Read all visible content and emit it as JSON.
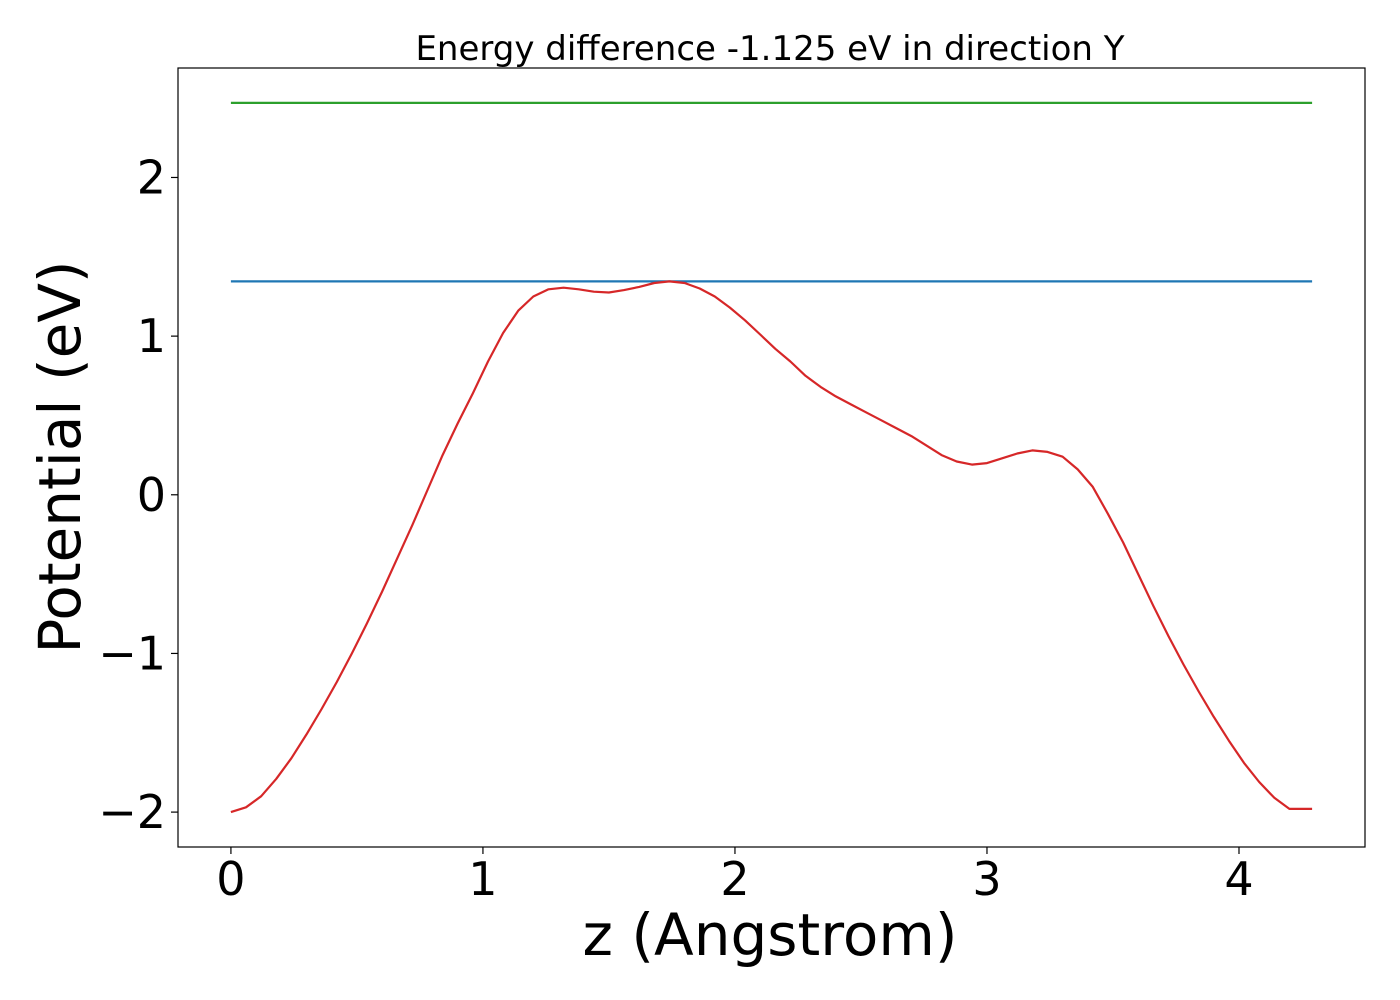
{
  "chart_data": {
    "type": "line",
    "title": "Energy difference -1.125 eV in direction Y",
    "xlabel": "z (Angstrom)",
    "ylabel": "Potential (eV)",
    "xlim": [
      -0.21,
      4.5
    ],
    "ylim": [
      -2.22,
      2.69
    ],
    "x_ticks": [
      0,
      1,
      2,
      3,
      4
    ],
    "x_tick_labels": [
      "0",
      "1",
      "2",
      "3",
      "4"
    ],
    "y_ticks": [
      -2,
      -1,
      0,
      1,
      2
    ],
    "y_tick_labels": [
      "−2",
      "−1",
      "0",
      "1",
      "2"
    ],
    "grid": false,
    "series": [
      {
        "color": "#2ca02c",
        "x": [
          0,
          4.29
        ],
        "y": [
          2.47,
          2.47
        ]
      },
      {
        "color": "#1f77b4",
        "x": [
          0,
          4.29
        ],
        "y": [
          1.345,
          1.345
        ]
      },
      {
        "color": "#d62728",
        "x": [
          0,
          0.06,
          0.12,
          0.18,
          0.24,
          0.3,
          0.36,
          0.42,
          0.48,
          0.54,
          0.6,
          0.66,
          0.72,
          0.78,
          0.84,
          0.9,
          0.96,
          1.02,
          1.08,
          1.14,
          1.2,
          1.26,
          1.32,
          1.38,
          1.44,
          1.5,
          1.56,
          1.62,
          1.68,
          1.74,
          1.8,
          1.86,
          1.92,
          1.98,
          2.04,
          2.1,
          2.16,
          2.22,
          2.28,
          2.34,
          2.4,
          2.46,
          2.52,
          2.58,
          2.64,
          2.7,
          2.76,
          2.82,
          2.88,
          2.94,
          3.0,
          3.06,
          3.12,
          3.18,
          3.24,
          3.3,
          3.36,
          3.42,
          3.48,
          3.54,
          3.6,
          3.66,
          3.72,
          3.78,
          3.84,
          3.9,
          3.96,
          4.02,
          4.08,
          4.14,
          4.2,
          4.29
        ],
        "y": [
          -2.0,
          -1.97,
          -1.9,
          -1.79,
          -1.66,
          -1.51,
          -1.35,
          -1.18,
          -1.0,
          -0.81,
          -0.61,
          -0.4,
          -0.19,
          0.03,
          0.25,
          0.45,
          0.64,
          0.84,
          1.02,
          1.16,
          1.25,
          1.295,
          1.305,
          1.295,
          1.28,
          1.275,
          1.29,
          1.31,
          1.335,
          1.345,
          1.335,
          1.3,
          1.25,
          1.18,
          1.1,
          1.01,
          0.92,
          0.84,
          0.75,
          0.68,
          0.62,
          0.57,
          0.52,
          0.47,
          0.42,
          0.37,
          0.31,
          0.25,
          0.21,
          0.19,
          0.2,
          0.23,
          0.26,
          0.28,
          0.27,
          0.24,
          0.16,
          0.05,
          -0.12,
          -0.3,
          -0.5,
          -0.7,
          -0.89,
          -1.07,
          -1.24,
          -1.4,
          -1.55,
          -1.69,
          -1.81,
          -1.91,
          -1.98,
          -1.98
        ]
      }
    ]
  }
}
